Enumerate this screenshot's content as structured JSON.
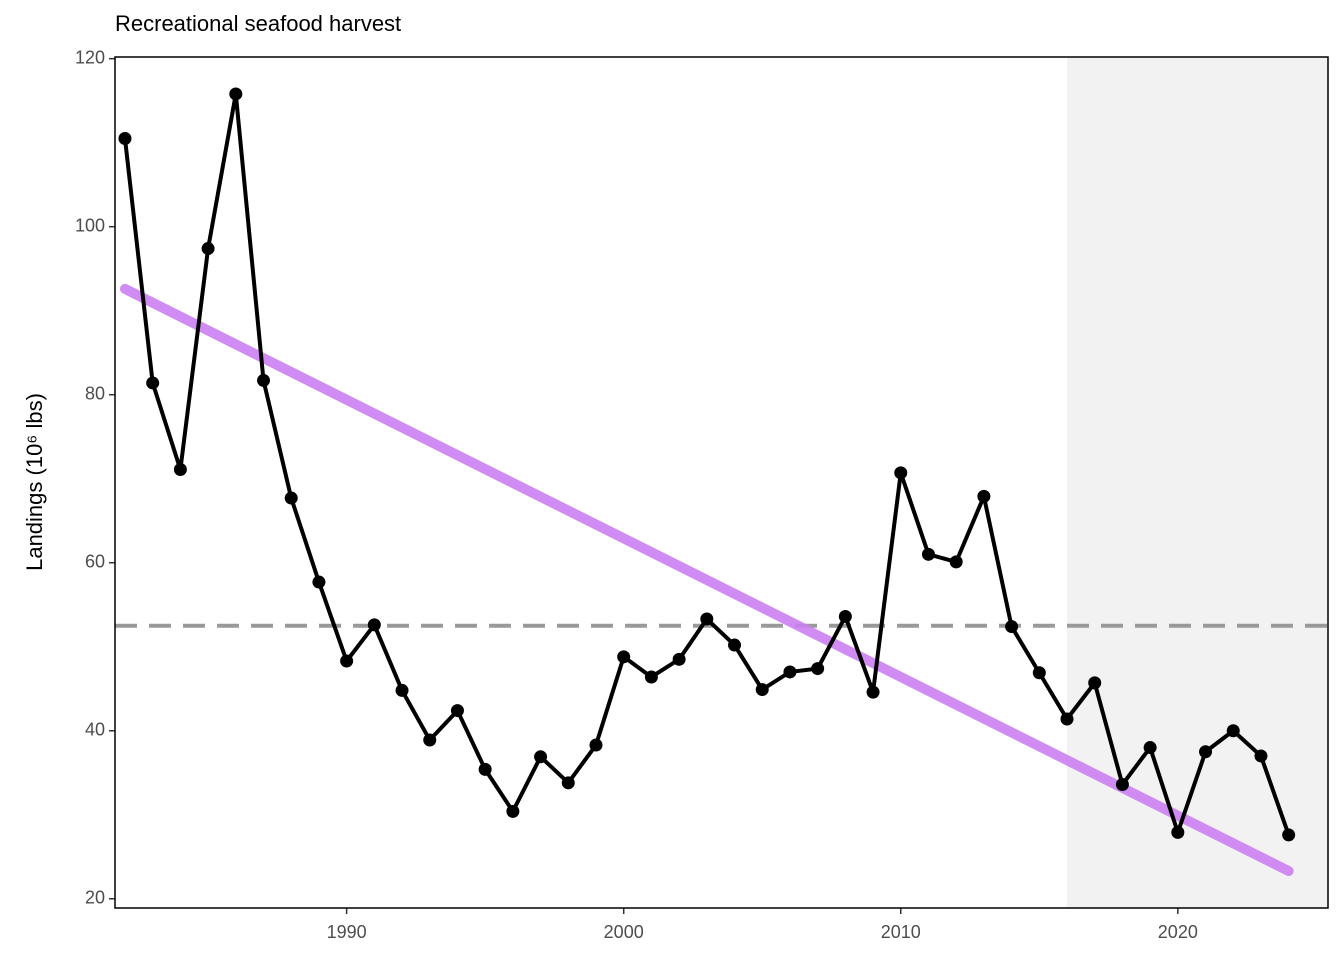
{
  "chart_data": {
    "type": "line",
    "title": "Recreational seafood harvest",
    "y_label": "Landings (10⁶ lbs)",
    "x": [
      1982,
      1983,
      1984,
      1985,
      1986,
      1987,
      1988,
      1989,
      1990,
      1991,
      1992,
      1993,
      1994,
      1995,
      1996,
      1997,
      1998,
      1999,
      2000,
      2001,
      2002,
      2003,
      2004,
      2005,
      2006,
      2007,
      2008,
      2009,
      2010,
      2011,
      2012,
      2013,
      2014,
      2015,
      2016,
      2017,
      2018,
      2019,
      2020,
      2021,
      2022,
      2023,
      2024
    ],
    "series": [
      {
        "color": "#000000",
        "values": [
          110.5,
          81.4,
          71.1,
          97.4,
          115.8,
          81.7,
          67.7,
          57.7,
          48.3,
          52.6,
          44.8,
          38.9,
          42.4,
          35.4,
          30.4,
          36.9,
          33.8,
          38.3,
          48.8,
          46.4,
          48.5,
          53.3,
          50.2,
          44.9,
          47.0,
          47.4,
          53.6,
          44.6,
          70.7,
          61.0,
          60.1,
          67.9,
          52.4,
          46.9,
          41.4,
          45.7,
          33.6,
          38.0,
          27.9,
          37.5,
          40.0,
          37.0,
          27.6
        ]
      }
    ],
    "trend": {
      "x": [
        1982,
        2024
      ],
      "values": [
        92.6,
        23.3
      ],
      "color": "#cc80f2"
    },
    "mean": 52.5,
    "mean_color": "#999999",
    "shade_from": 2016,
    "shade_color": "#f2f2f2",
    "xlim": [
      1981.64,
      2025.42
    ],
    "ylim": [
      18.9,
      120.2
    ],
    "xticks": [
      1990,
      2000,
      2010,
      2020
    ],
    "yticks": [
      20,
      40,
      60,
      80,
      100,
      120
    ]
  }
}
